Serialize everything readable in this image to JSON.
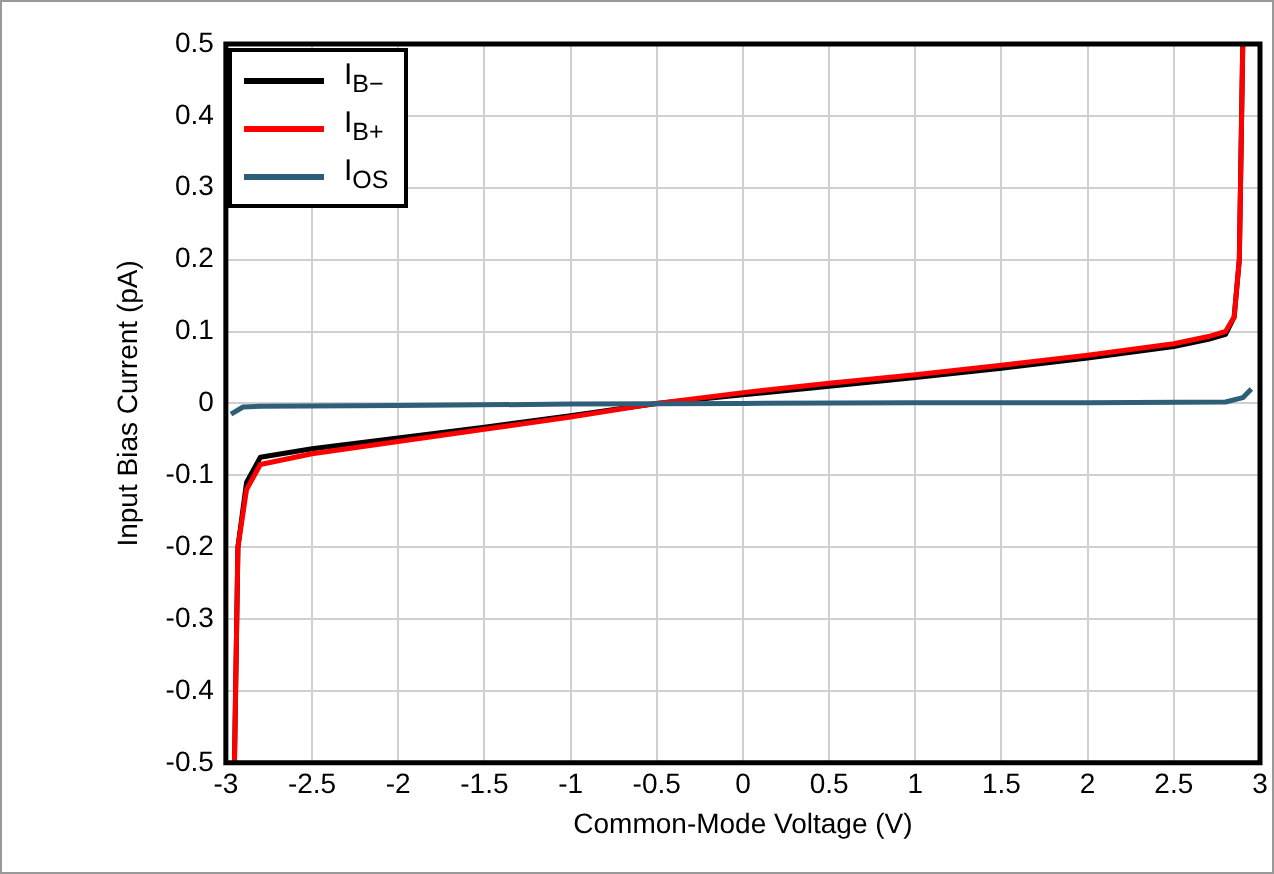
{
  "chart_data": {
    "type": "line",
    "xlabel": "Common-Mode Voltage (V)",
    "ylabel": "Input Bias Current (pA)",
    "xlim": [
      -3,
      3
    ],
    "xticks": [
      -3,
      -2.5,
      -2,
      -1.5,
      -1,
      -0.5,
      0,
      0.5,
      1,
      1.5,
      2,
      2.5,
      3
    ],
    "ylim": [
      -0.5,
      0.5
    ],
    "yticks": [
      -0.5,
      -0.4,
      -0.3,
      -0.2,
      -0.1,
      0,
      0.1,
      0.2,
      0.3,
      0.4,
      0.5
    ],
    "grid": true,
    "legend": "top left",
    "marker": "none",
    "line_style": "solid",
    "series": [
      {
        "name": "I$_{B−}$",
        "color": "#000000",
        "x": [
          -2.95,
          -2.93,
          -2.88,
          -2.8,
          -2.5,
          -2,
          -1.5,
          -1,
          -0.5,
          0,
          0.5,
          1,
          1.5,
          2,
          2.5,
          2.7,
          2.8,
          2.85,
          2.88,
          2.9
        ],
        "values": [
          -0.5,
          -0.2,
          -0.11,
          -0.075,
          -0.063,
          -0.048,
          -0.033,
          -0.017,
          0,
          0.012,
          0.024,
          0.036,
          0.049,
          0.063,
          0.079,
          0.089,
          0.096,
          0.12,
          0.2,
          0.5
        ]
      },
      {
        "name": "I$_{B+}$",
        "color": "#ff0000",
        "x": [
          -2.95,
          -2.93,
          -2.88,
          -2.8,
          -2.5,
          -2,
          -1.5,
          -1,
          -0.5,
          0,
          0.5,
          1,
          1.5,
          2,
          2.5,
          2.7,
          2.8,
          2.85,
          2.88,
          2.9
        ],
        "values": [
          -0.5,
          -0.2,
          -0.12,
          -0.085,
          -0.07,
          -0.053,
          -0.036,
          -0.019,
          0,
          0.015,
          0.028,
          0.04,
          0.053,
          0.067,
          0.083,
          0.093,
          0.1,
          0.12,
          0.2,
          0.5
        ]
      },
      {
        "name": "I$_{OS}$",
        "color": "#2e5e78",
        "x": [
          -2.97,
          -2.9,
          -2.8,
          -2,
          -1,
          0,
          1,
          2,
          2.8,
          2.9,
          2.95
        ],
        "values": [
          -0.015,
          -0.005,
          -0.004,
          -0.003,
          -0.001,
          0,
          0.001,
          0.001,
          0.002,
          0.008,
          0.02
        ]
      }
    ]
  }
}
